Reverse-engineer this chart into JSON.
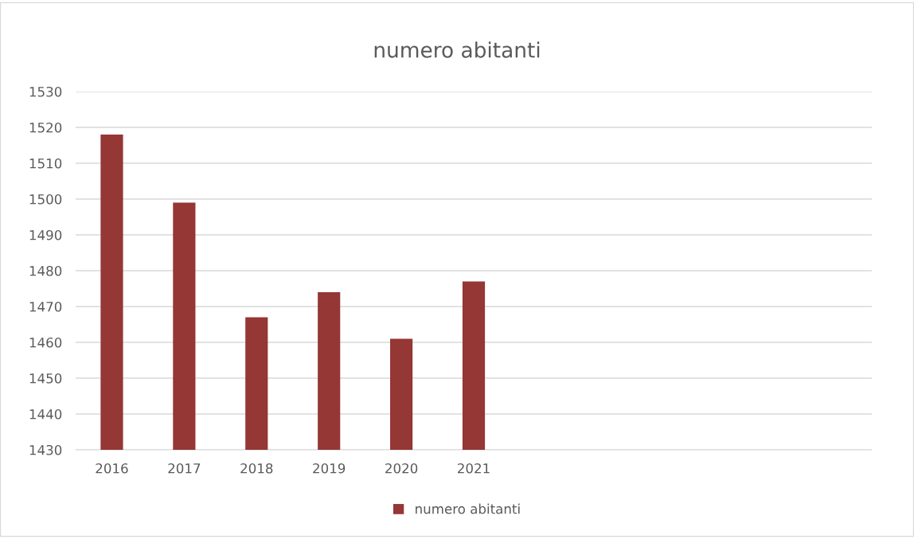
{
  "chart_data": {
    "type": "bar",
    "title": "numero abitanti",
    "categories": [
      "2016",
      "2017",
      "2018",
      "2019",
      "2020",
      "2021",
      null,
      null,
      null,
      null,
      null
    ],
    "series": [
      {
        "name": "numero abitanti",
        "color": "#953735",
        "values": [
          1518,
          1499,
          1467,
          1474,
          1461,
          1477,
          null,
          null,
          null,
          null,
          null
        ]
      }
    ],
    "ylim": [
      1430,
      1530
    ],
    "yticks": [
      1430,
      1440,
      1450,
      1460,
      1470,
      1480,
      1490,
      1500,
      1510,
      1520,
      1530
    ],
    "grid": "y",
    "legend": "bottom"
  }
}
